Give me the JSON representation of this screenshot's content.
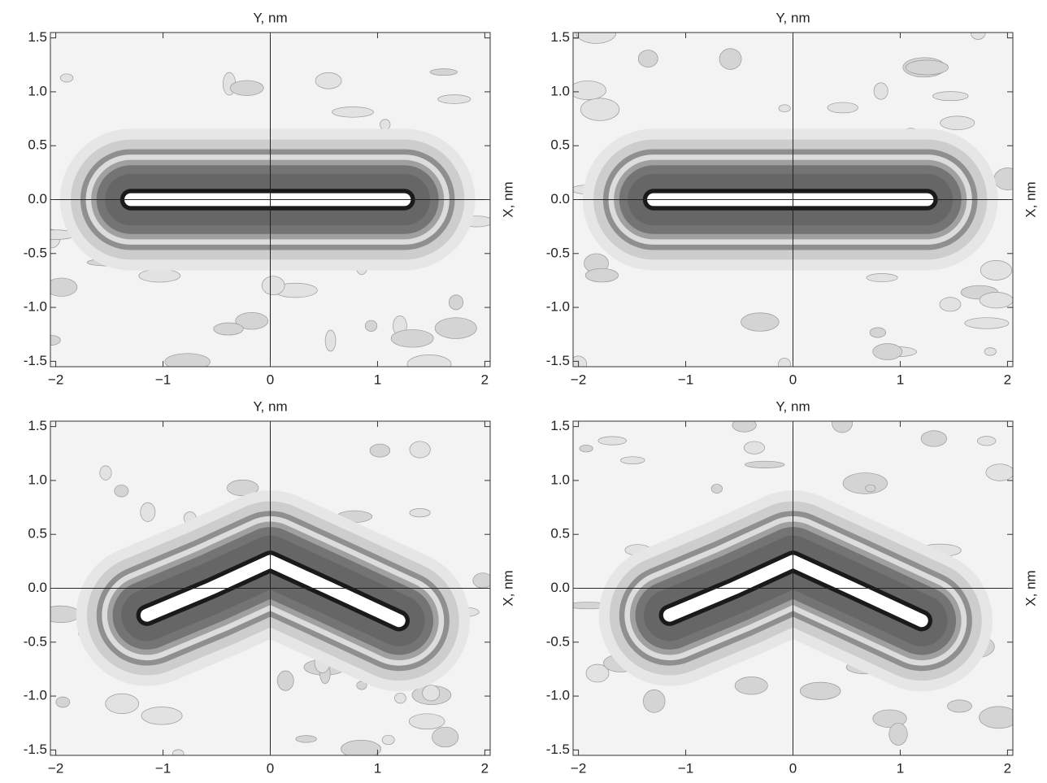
{
  "chart_data": [
    {
      "type": "contour",
      "title": "Y, nm",
      "ylabel": "X, nm",
      "xlim": [
        -2.05,
        2.05
      ],
      "ylim": [
        -1.55,
        1.55
      ],
      "xticks": [
        {
          "value": -2,
          "label": "−2"
        },
        {
          "value": -1,
          "label": "−1"
        },
        0,
        1,
        2
      ],
      "yticks": [
        -1.5,
        {
          "value": -1,
          "label": "-1.0"
        },
        -0.5,
        {
          "value": 0,
          "label": "0.0"
        },
        0.5,
        {
          "value": 1,
          "label": "1.0"
        },
        1.5
      ]
    },
    {
      "type": "contour",
      "title": "Y, nm",
      "ylabel": "X, nm",
      "xlim": [
        -2.05,
        2.05
      ],
      "ylim": [
        -1.55,
        1.55
      ],
      "xticks": [
        {
          "value": -2,
          "label": "−2"
        },
        {
          "value": -1,
          "label": "−1"
        },
        0,
        1,
        2
      ],
      "yticks": [
        -1.5,
        {
          "value": -1,
          "label": "-1.0"
        },
        -0.5,
        {
          "value": 0,
          "label": "0.0"
        },
        0.5,
        {
          "value": 1,
          "label": "1.0"
        },
        1.5
      ]
    },
    {
      "type": "contour",
      "title": "Y, nm",
      "ylabel": "X, nm",
      "xlim": [
        -2.05,
        2.05
      ],
      "ylim": [
        -1.55,
        1.55
      ],
      "xticks": [
        {
          "value": -2,
          "label": "−2"
        },
        {
          "value": -1,
          "label": "−1"
        },
        0,
        1,
        2
      ],
      "yticks": [
        -1.5,
        {
          "value": -1,
          "label": "-1.0"
        },
        -0.5,
        {
          "value": 0,
          "label": "0.0"
        },
        0.5,
        {
          "value": 1,
          "label": "1.0"
        },
        1.5
      ]
    },
    {
      "type": "contour",
      "title": "Y, nm",
      "ylabel": "X, nm",
      "xlim": [
        -2.05,
        2.05
      ],
      "ylim": [
        -1.55,
        1.55
      ],
      "xticks": [
        {
          "value": -2,
          "label": "−2"
        },
        {
          "value": -1,
          "label": "−1"
        },
        0,
        1,
        2
      ],
      "yticks": [
        -1.5,
        {
          "value": -1,
          "label": "-1.0"
        },
        -0.5,
        {
          "value": 0,
          "label": "0.0"
        },
        0.5,
        {
          "value": 1,
          "label": "1.0"
        },
        1.5
      ]
    }
  ]
}
